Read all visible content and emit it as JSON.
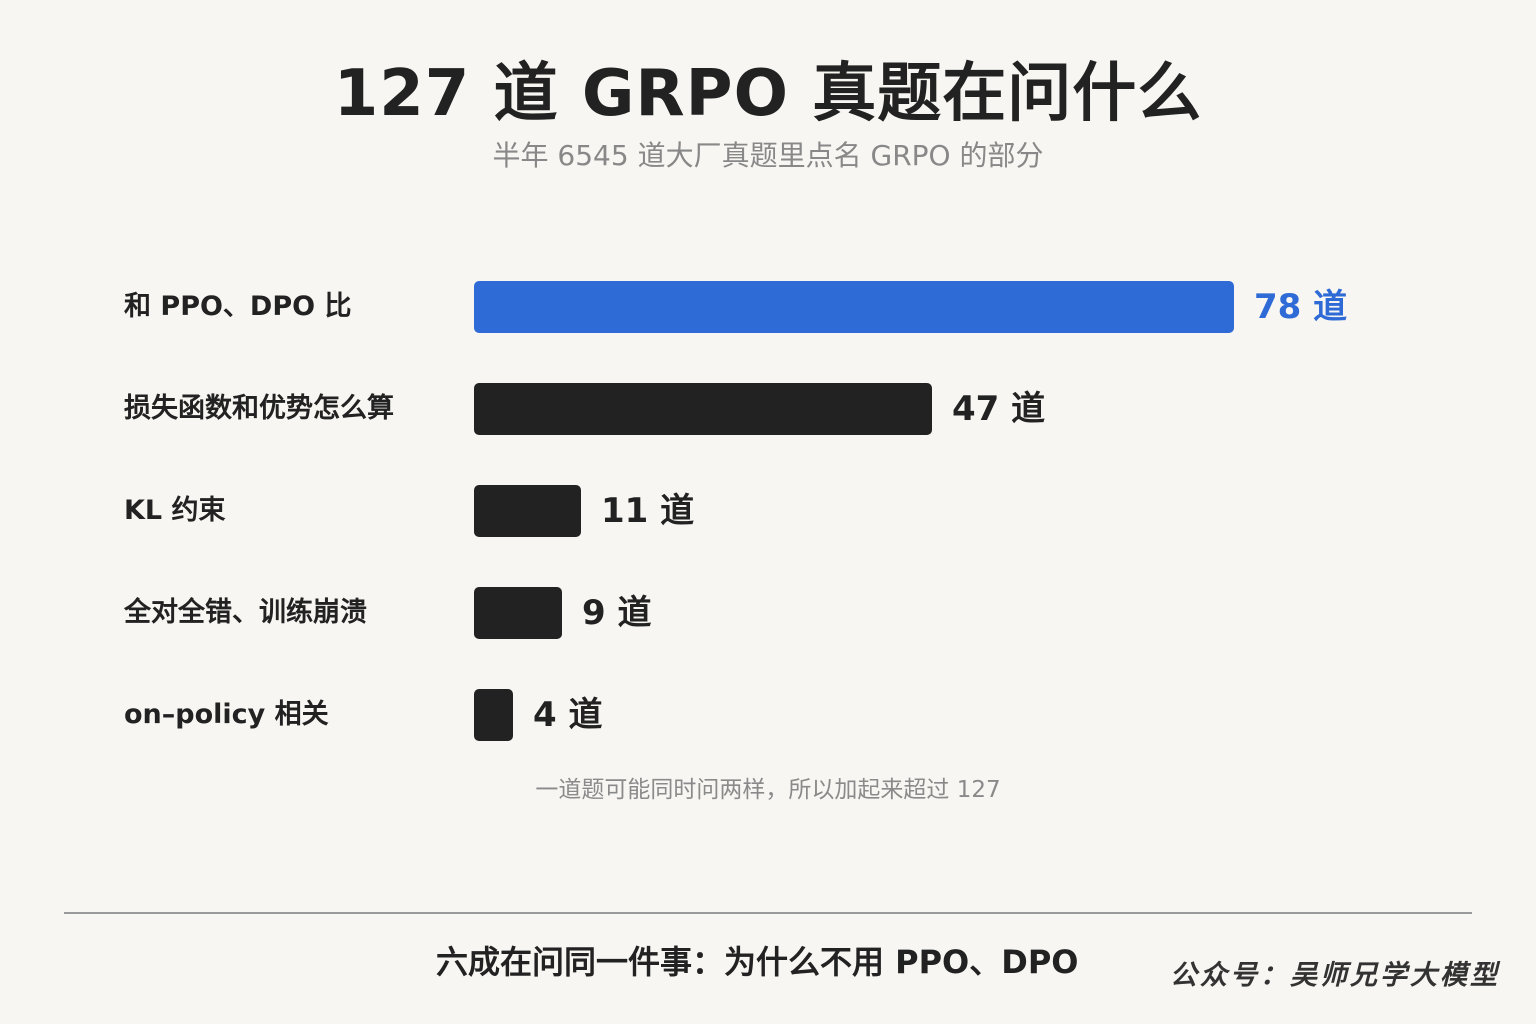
{
  "chart_data": {
    "type": "bar",
    "orientation": "horizontal",
    "title": "127 道 GRPO 真题在问什么",
    "subtitle": "半年 6545 道大厂真题里点名 GRPO 的部分",
    "categories": [
      "和 PPO、DPO 比",
      "损失函数和优势怎么算",
      "KL 约束",
      "全对全错、训练崩溃",
      "on–policy 相关"
    ],
    "values": [
      78,
      47,
      11,
      9,
      4
    ],
    "value_labels": [
      "78 道",
      "47 道",
      "11 道",
      "9 道",
      "4 道"
    ],
    "highlight_index": 0,
    "xlim": [
      0,
      78
    ],
    "grid": false,
    "legend": "none",
    "note": "一道题可能同时问两样，所以加起来超过 127"
  },
  "colors": {
    "background": "#f7f6f2",
    "highlight_bar": "#2f6bd6",
    "default_bar": "#222222",
    "text": "#222222",
    "muted_text": "#888888"
  },
  "footer": {
    "summary": "六成在问同一件事：为什么不用 PPO、DPO",
    "watermark": "公众号：吴师兄学大模型"
  }
}
